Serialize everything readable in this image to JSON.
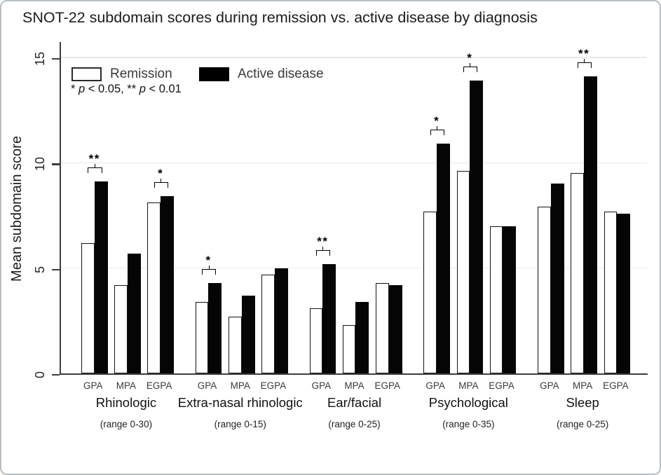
{
  "title": "SNOT-22 subdomain scores during remission vs. active disease by diagnosis",
  "legend": {
    "remission_label": "Remission",
    "active_label": "Active disease",
    "significance_note": "* p < 0.05, ** p < 0.01"
  },
  "colors": {
    "remission_fill": "#ffffff",
    "active_fill": "#000000",
    "axis": "#3d3d3d",
    "gridline": "#e9e9e9",
    "figure_border": "#b7bfc6"
  },
  "chart_data": {
    "type": "bar",
    "title": "SNOT-22 subdomain scores during remission vs. active disease by diagnosis",
    "xlabel": "",
    "ylabel": "Mean subdomain score",
    "ylim": [
      0,
      15
    ],
    "yticks": [
      0,
      5,
      10,
      15
    ],
    "grid": "horizontal light gridlines at 5, 10 and 15",
    "legend_position": "top-left inside plot",
    "significance_note": "* p < 0.05, ** p < 0.01",
    "series": [
      {
        "name": "Remission",
        "fill": "white"
      },
      {
        "name": "Active disease",
        "fill": "black"
      }
    ],
    "group_categories": [
      "GPA",
      "MPA",
      "EGPA"
    ],
    "groups": [
      {
        "label": "Rhinologic",
        "range_note": "(range 0-30)",
        "remission": [
          6.2,
          4.2,
          8.1
        ],
        "active": [
          9.1,
          5.7,
          8.4
        ],
        "significance": [
          "**",
          null,
          "*"
        ]
      },
      {
        "label": "Extra-nasal rhinologic",
        "range_note": "(range 0-15)",
        "remission": [
          3.4,
          2.7,
          4.7
        ],
        "active": [
          4.3,
          3.7,
          5.0
        ],
        "significance": [
          "*",
          null,
          null
        ]
      },
      {
        "label": "Ear/facial",
        "range_note": "(range 0-25)",
        "remission": [
          3.1,
          2.3,
          4.3
        ],
        "active": [
          5.2,
          3.4,
          4.2
        ],
        "significance": [
          "**",
          null,
          null
        ]
      },
      {
        "label": "Psychological",
        "range_note": "(range 0-35)",
        "remission": [
          7.7,
          9.6,
          7.0
        ],
        "active": [
          10.9,
          13.9,
          7.0
        ],
        "significance": [
          "*",
          "*",
          null
        ]
      },
      {
        "label": "Sleep",
        "range_note": "(range 0-25)",
        "remission": [
          7.9,
          9.5,
          7.7
        ],
        "active": [
          9.0,
          14.1,
          7.6
        ],
        "significance": [
          null,
          "**",
          null
        ]
      }
    ]
  }
}
